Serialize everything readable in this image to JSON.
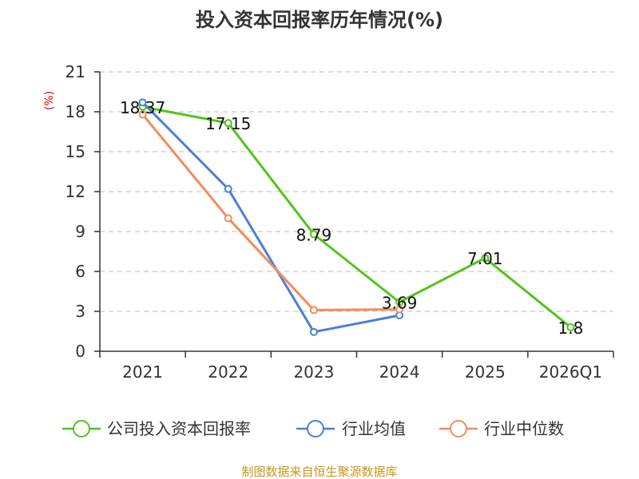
{
  "chart_data": {
    "type": "line",
    "title": "投入资本回报率历年情况(%)",
    "ylabel": "(%)",
    "xlabel": "",
    "categories": [
      "2021",
      "2022",
      "2023",
      "2024",
      "2025",
      "2026Q1"
    ],
    "ylim": [
      0,
      21
    ],
    "yticks": [
      0,
      3,
      6,
      9,
      12,
      15,
      18,
      21
    ],
    "grid": true,
    "legend_position": "bottom",
    "series": [
      {
        "name": "公司投入资本回报率",
        "color": "#52c41a",
        "values": [
          18.37,
          17.15,
          8.79,
          3.69,
          7.01,
          1.8
        ],
        "labels": [
          "18.37",
          "17.15",
          "8.79",
          "3.69",
          "7.01",
          "1.8"
        ]
      },
      {
        "name": "行业均值",
        "color": "#4a7fd8",
        "values": [
          18.7,
          12.2,
          1.45,
          2.7,
          null,
          null
        ]
      },
      {
        "name": "行业中位数",
        "color": "#f28c5b",
        "values": [
          17.8,
          10.0,
          3.1,
          3.15,
          null,
          null
        ]
      }
    ],
    "source": "制图数据来自恒生聚源数据库"
  }
}
